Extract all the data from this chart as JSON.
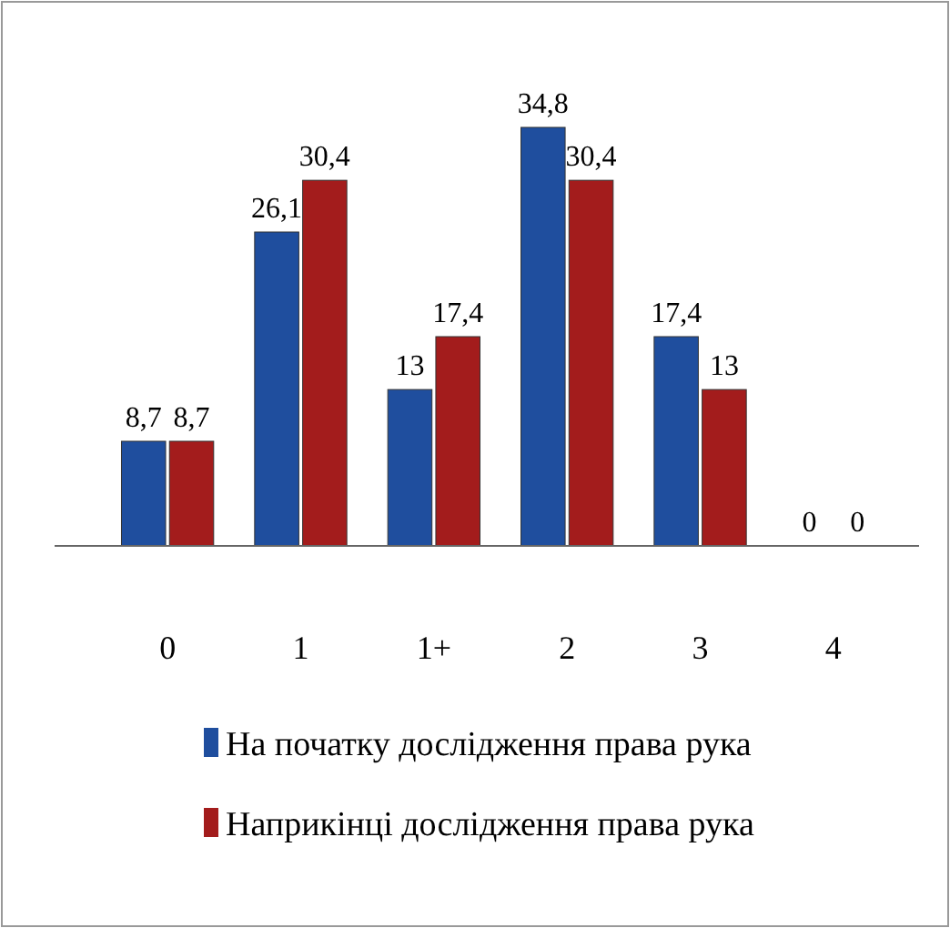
{
  "chart_data": {
    "type": "bar",
    "categories": [
      "0",
      "1",
      "1+",
      "2",
      "3",
      "4"
    ],
    "series": [
      {
        "name": "На початку дослідження права рука",
        "color": "#1f4e9e",
        "values": [
          8.7,
          26.1,
          13,
          34.8,
          17.4,
          0
        ],
        "value_labels": [
          "8,7",
          "26,1",
          "13",
          "34,8",
          "17,4",
          "0"
        ]
      },
      {
        "name": "Наприкінці дослідження права рука",
        "color": "#a31c1c",
        "values": [
          8.7,
          30.4,
          17.4,
          30.4,
          13,
          0
        ],
        "value_labels": [
          "8,7",
          "30,4",
          "17,4",
          "30,4",
          "13",
          "0"
        ]
      }
    ],
    "legend": "bottom"
  }
}
